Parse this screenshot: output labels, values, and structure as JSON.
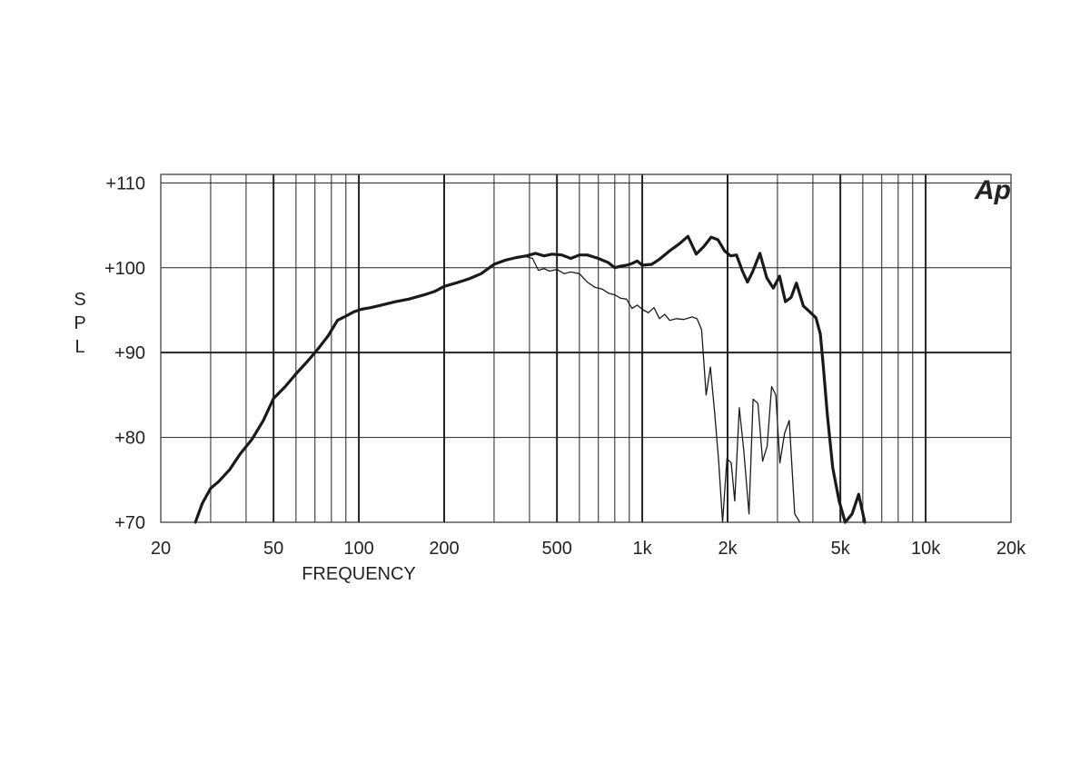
{
  "chart_data": {
    "type": "line",
    "title": "",
    "xlabel": "FREQUENCY",
    "ylabel": "SPL",
    "x_scale": "log",
    "xlim": [
      20,
      20000
    ],
    "ylim": [
      70,
      111
    ],
    "grid": true,
    "logo": "Ap",
    "x_ticks": [
      {
        "value": 20,
        "label": "20"
      },
      {
        "value": 50,
        "label": "50"
      },
      {
        "value": 100,
        "label": "100"
      },
      {
        "value": 200,
        "label": "200"
      },
      {
        "value": 500,
        "label": "500"
      },
      {
        "value": 1000,
        "label": "1k"
      },
      {
        "value": 2000,
        "label": "2k"
      },
      {
        "value": 5000,
        "label": "5k"
      },
      {
        "value": 10000,
        "label": "10k"
      },
      {
        "value": 20000,
        "label": "20k"
      }
    ],
    "y_ticks": [
      {
        "value": 110,
        "label": "+110"
      },
      {
        "value": 100,
        "label": "+100"
      },
      {
        "value": 90,
        "label": "+90"
      },
      {
        "value": 80,
        "label": "+80"
      },
      {
        "value": 70,
        "label": "+70"
      }
    ],
    "series": [
      {
        "style": "thick",
        "points": [
          [
            26.5,
            70
          ],
          [
            28,
            72.2
          ],
          [
            30,
            74
          ],
          [
            32,
            74.8
          ],
          [
            35,
            76.2
          ],
          [
            38,
            78
          ],
          [
            42,
            79.8
          ],
          [
            46,
            82
          ],
          [
            50,
            84.6
          ],
          [
            55,
            86
          ],
          [
            60,
            87.5
          ],
          [
            66,
            89
          ],
          [
            72,
            90.5
          ],
          [
            78,
            92
          ],
          [
            84,
            93.8
          ],
          [
            90,
            94.3
          ],
          [
            96,
            94.8
          ],
          [
            102,
            95.1
          ],
          [
            110,
            95.3
          ],
          [
            120,
            95.6
          ],
          [
            135,
            96
          ],
          [
            150,
            96.3
          ],
          [
            170,
            96.8
          ],
          [
            185,
            97.2
          ],
          [
            200,
            97.8
          ],
          [
            220,
            98.2
          ],
          [
            245,
            98.7
          ],
          [
            270,
            99.3
          ],
          [
            300,
            100.4
          ],
          [
            330,
            100.9
          ],
          [
            360,
            101.2
          ],
          [
            390,
            101.4
          ],
          [
            420,
            101.7
          ],
          [
            450,
            101.4
          ],
          [
            480,
            101.6
          ],
          [
            520,
            101.5
          ],
          [
            560,
            101.1
          ],
          [
            600,
            101.5
          ],
          [
            640,
            101.5
          ],
          [
            700,
            101.1
          ],
          [
            760,
            100.6
          ],
          [
            800,
            100
          ],
          [
            840,
            100.2
          ],
          [
            880,
            100.3
          ],
          [
            920,
            100.5
          ],
          [
            960,
            100.8
          ],
          [
            1000,
            100.3
          ],
          [
            1080,
            100.4
          ],
          [
            1150,
            101
          ],
          [
            1250,
            102
          ],
          [
            1350,
            102.8
          ],
          [
            1450,
            103.7
          ],
          [
            1550,
            101.6
          ],
          [
            1650,
            102.5
          ],
          [
            1750,
            103.6
          ],
          [
            1850,
            103.3
          ],
          [
            1950,
            102
          ],
          [
            2050,
            101.4
          ],
          [
            2150,
            101.5
          ],
          [
            2250,
            99.7
          ],
          [
            2350,
            98.3
          ],
          [
            2450,
            99.5
          ],
          [
            2600,
            101.7
          ],
          [
            2750,
            98.8
          ],
          [
            2900,
            97.6
          ],
          [
            3050,
            99
          ],
          [
            3200,
            96
          ],
          [
            3350,
            96.5
          ],
          [
            3500,
            98.2
          ],
          [
            3700,
            95.5
          ],
          [
            3900,
            94.8
          ],
          [
            4100,
            94.1
          ],
          [
            4250,
            92.2
          ],
          [
            4350,
            88.5
          ],
          [
            4500,
            82.6
          ],
          [
            4700,
            76.4
          ],
          [
            4950,
            72.5
          ],
          [
            5200,
            70
          ],
          [
            5500,
            71
          ],
          [
            5800,
            73.3
          ],
          [
            6100,
            70
          ]
        ]
      },
      {
        "style": "thin",
        "points": [
          [
            300,
            100.4
          ],
          [
            330,
            100.9
          ],
          [
            360,
            101.2
          ],
          [
            390,
            101.3
          ],
          [
            410,
            101.1
          ],
          [
            430,
            99.7
          ],
          [
            450,
            99.9
          ],
          [
            470,
            99.6
          ],
          [
            500,
            99.8
          ],
          [
            530,
            99.3
          ],
          [
            560,
            99.5
          ],
          [
            600,
            99.3
          ],
          [
            640,
            98.3
          ],
          [
            680,
            97.7
          ],
          [
            720,
            97.5
          ],
          [
            760,
            97
          ],
          [
            800,
            96.8
          ],
          [
            840,
            96.4
          ],
          [
            880,
            96.3
          ],
          [
            920,
            95.2
          ],
          [
            960,
            95.6
          ],
          [
            1000,
            95.1
          ],
          [
            1050,
            94.7
          ],
          [
            1100,
            95.3
          ],
          [
            1150,
            94
          ],
          [
            1200,
            94.5
          ],
          [
            1250,
            93.8
          ],
          [
            1320,
            94
          ],
          [
            1400,
            93.9
          ],
          [
            1500,
            94.2
          ],
          [
            1560,
            94
          ],
          [
            1620,
            92.7
          ],
          [
            1680,
            85
          ],
          [
            1740,
            88.3
          ],
          [
            1800,
            83
          ],
          [
            1860,
            77.2
          ],
          [
            1920,
            70
          ],
          [
            1990,
            77.5
          ],
          [
            2060,
            77
          ],
          [
            2120,
            72.5
          ],
          [
            2200,
            83.5
          ],
          [
            2280,
            78.5
          ],
          [
            2380,
            71
          ],
          [
            2460,
            84.5
          ],
          [
            2560,
            84
          ],
          [
            2660,
            77.2
          ],
          [
            2760,
            79
          ],
          [
            2860,
            86
          ],
          [
            2960,
            85
          ],
          [
            3060,
            77
          ],
          [
            3180,
            80.5
          ],
          [
            3300,
            82
          ],
          [
            3450,
            71
          ],
          [
            3600,
            70
          ]
        ]
      }
    ]
  }
}
